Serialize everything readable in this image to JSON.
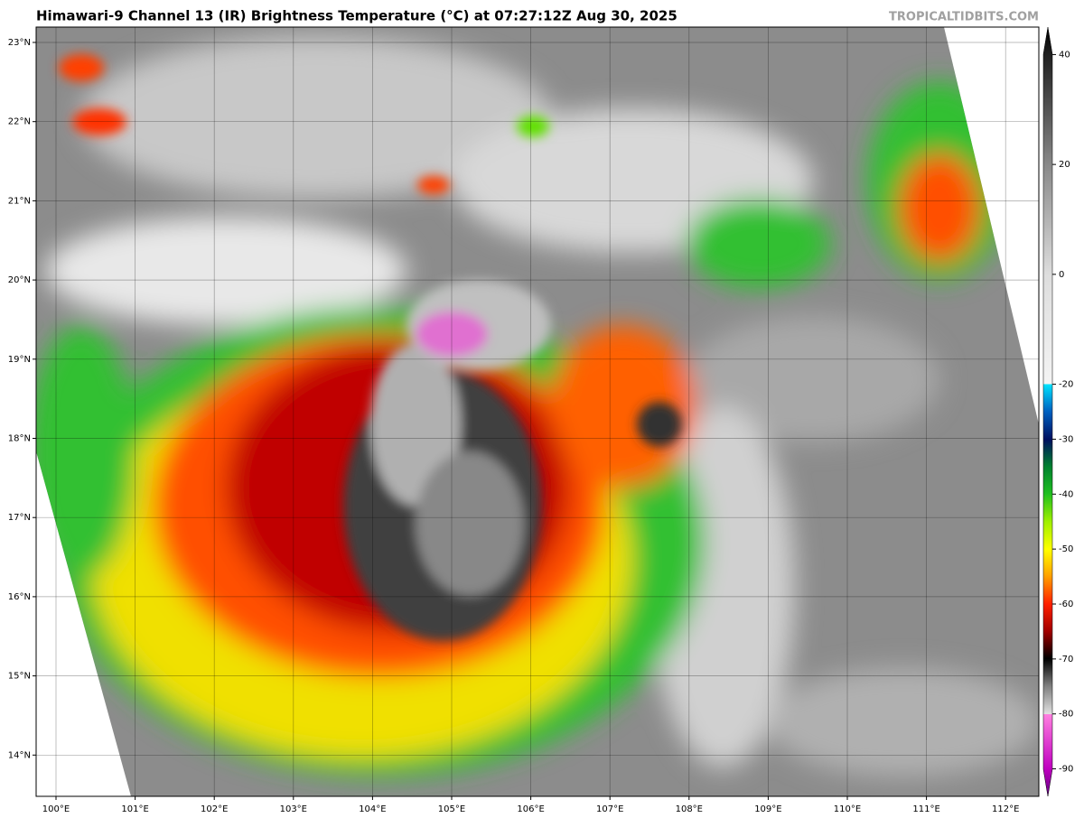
{
  "header": {
    "title": "Himawari-9 Channel 13 (IR) Brightness Temperature (°C) at 07:27:12Z Aug 30, 2025",
    "credit": "TROPICALTIDBITS.COM"
  },
  "map": {
    "lat_labels": [
      "23°N",
      "22°N",
      "21°N",
      "20°N",
      "19°N",
      "18°N",
      "17°N",
      "16°N",
      "15°N",
      "14°N"
    ],
    "lon_labels": [
      "100°E",
      "101°E",
      "102°E",
      "103°E",
      "104°E",
      "105°E",
      "106°E",
      "107°E",
      "108°E",
      "109°E",
      "110°E",
      "111°E",
      "112°E"
    ]
  },
  "colorbar": {
    "range": [
      -95,
      45
    ],
    "ticks": [
      40,
      20,
      0,
      -20,
      -30,
      -40,
      -50,
      -60,
      -70,
      -80,
      -90
    ]
  }
}
